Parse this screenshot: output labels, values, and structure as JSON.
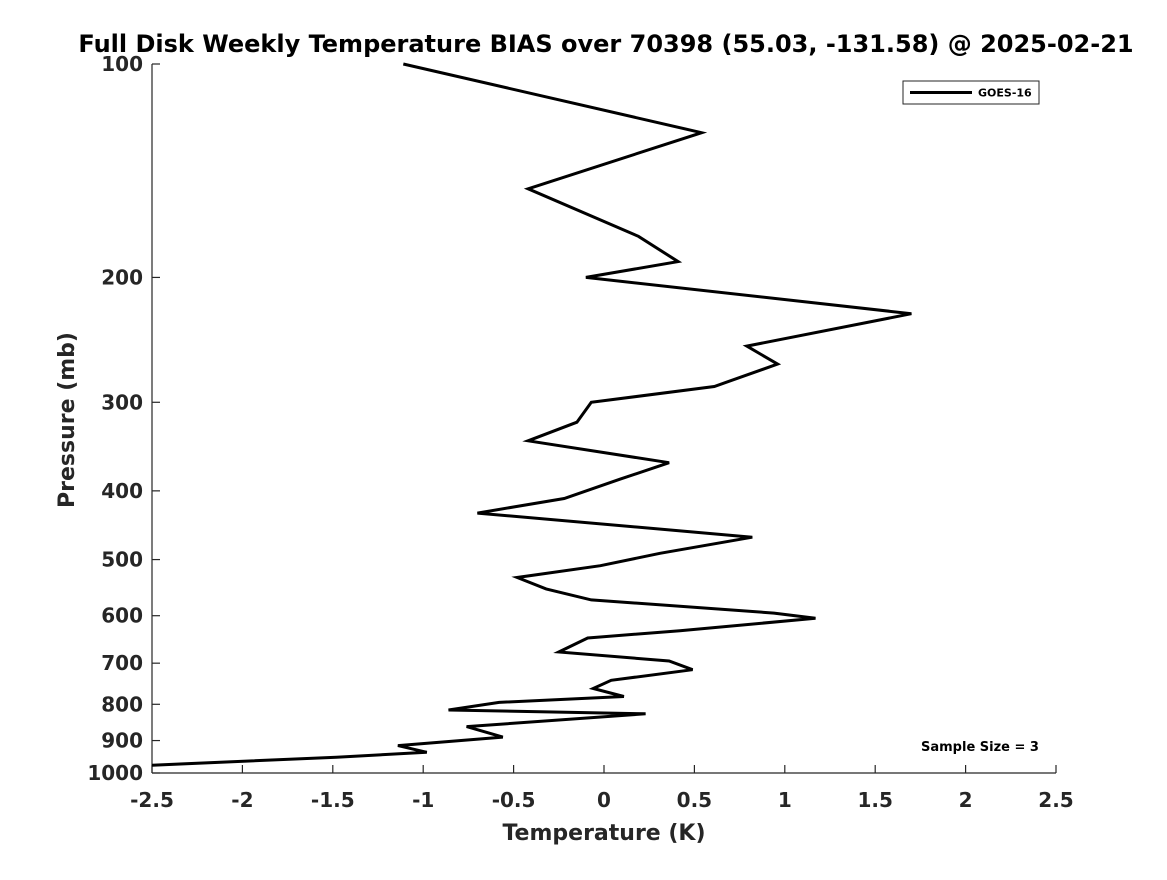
{
  "chart_data": {
    "type": "line",
    "title": "Full Disk Weekly Temperature BIAS over 70398 (55.03, -131.58) @ 2025-02-21",
    "xlabel": "Temperature (K)",
    "ylabel": "Pressure (mb)",
    "xlim": [
      -2.5,
      2.5
    ],
    "ylim": [
      100,
      1000
    ],
    "y_scale": "log",
    "y_reversed": true,
    "x_ticks": [
      -2.5,
      -2,
      -1.5,
      -1,
      -0.5,
      0,
      0.5,
      1,
      1.5,
      2,
      2.5
    ],
    "x_tick_labels": [
      "-2.5",
      "-2",
      "-1.5",
      "-1",
      "-0.5",
      "0",
      "0.5",
      "1",
      "1.5",
      "2",
      "2.5"
    ],
    "y_ticks": [
      100,
      200,
      300,
      400,
      500,
      600,
      700,
      800,
      900,
      1000
    ],
    "y_tick_labels": [
      "100",
      "200",
      "300",
      "400",
      "500",
      "600",
      "700",
      "800",
      "900",
      "1000"
    ],
    "grid": false,
    "legend": {
      "placement": "top-right",
      "entries": [
        "GOES-16"
      ]
    },
    "annotation": "Sample Size = 3",
    "series": [
      {
        "name": "GOES-16",
        "color": "#000000",
        "points": [
          [
            -1.11,
            100
          ],
          [
            0.54,
            125
          ],
          [
            -0.42,
            150
          ],
          [
            0.19,
            175
          ],
          [
            0.41,
            190
          ],
          [
            -0.1,
            200
          ],
          [
            1.7,
            225
          ],
          [
            0.79,
            250
          ],
          [
            0.96,
            265
          ],
          [
            0.61,
            285
          ],
          [
            -0.07,
            300
          ],
          [
            -0.15,
            320
          ],
          [
            -0.42,
            340
          ],
          [
            0.36,
            365
          ],
          [
            0.09,
            385
          ],
          [
            -0.22,
            410
          ],
          [
            -0.7,
            430
          ],
          [
            0.82,
            465
          ],
          [
            0.31,
            490
          ],
          [
            -0.02,
            510
          ],
          [
            -0.48,
            530
          ],
          [
            -0.32,
            550
          ],
          [
            -0.07,
            570
          ],
          [
            0.94,
            595
          ],
          [
            1.17,
            605
          ],
          [
            0.42,
            630
          ],
          [
            -0.09,
            645
          ],
          [
            -0.25,
            675
          ],
          [
            0.36,
            695
          ],
          [
            0.49,
            715
          ],
          [
            0.04,
            740
          ],
          [
            -0.06,
            760
          ],
          [
            0.11,
            780
          ],
          [
            -0.58,
            795
          ],
          [
            -0.86,
            815
          ],
          [
            0.23,
            825
          ],
          [
            -0.76,
            860
          ],
          [
            -0.56,
            890
          ],
          [
            -1.14,
            915
          ],
          [
            -0.98,
            935
          ],
          [
            -1.48,
            950
          ],
          [
            -2.5,
            975
          ]
        ]
      }
    ]
  }
}
